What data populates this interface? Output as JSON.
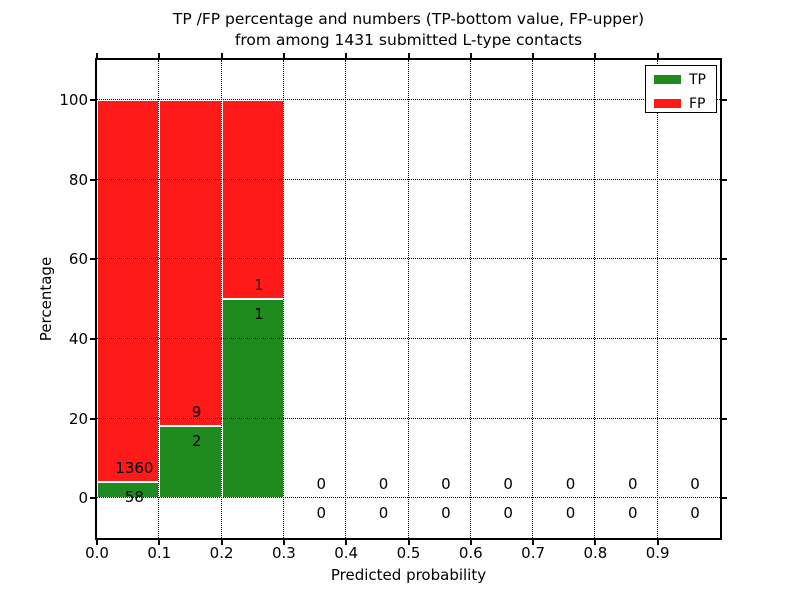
{
  "chart_data": {
    "type": "bar",
    "stacked": true,
    "units": "percent",
    "title_line1": "TP /FP percentage and numbers (TP-bottom value, FP-upper)",
    "title_line2": "from among 1431 submitted L-type contacts",
    "xlabel": "Predicted probability",
    "ylabel": "Percentage",
    "xlim": [
      0.0,
      1.0
    ],
    "ylim": [
      -10,
      110
    ],
    "xtick_labels": [
      "0.0",
      "0.1",
      "0.2",
      "0.3",
      "0.4",
      "0.5",
      "0.6",
      "0.7",
      "0.8",
      "0.9"
    ],
    "yticks": [
      0,
      20,
      40,
      60,
      80,
      100
    ],
    "grid": {
      "style": "dotted",
      "color": "#000000"
    },
    "colors": {
      "tp": "#1f8b1f",
      "fp": "#ff1a1a"
    },
    "legend": {
      "position": "upper-right",
      "entries": [
        {
          "label": "TP",
          "color": "#1f8b1f"
        },
        {
          "label": "FP",
          "color": "#ff1a1a"
        }
      ]
    },
    "total_submitted": 1431,
    "bins": [
      {
        "range": [
          0.0,
          0.1
        ],
        "tp": 58,
        "fp": 1360,
        "tp_pct": 4.09,
        "fp_pct": 95.91
      },
      {
        "range": [
          0.1,
          0.2
        ],
        "tp": 2,
        "fp": 9,
        "tp_pct": 18.18,
        "fp_pct": 81.82
      },
      {
        "range": [
          0.2,
          0.3
        ],
        "tp": 1,
        "fp": 1,
        "tp_pct": 50.0,
        "fp_pct": 50.0
      },
      {
        "range": [
          0.3,
          0.4
        ],
        "tp": 0,
        "fp": 0,
        "tp_pct": null,
        "fp_pct": null
      },
      {
        "range": [
          0.4,
          0.5
        ],
        "tp": 0,
        "fp": 0,
        "tp_pct": null,
        "fp_pct": null
      },
      {
        "range": [
          0.5,
          0.6
        ],
        "tp": 0,
        "fp": 0,
        "tp_pct": null,
        "fp_pct": null
      },
      {
        "range": [
          0.6,
          0.7
        ],
        "tp": 0,
        "fp": 0,
        "tp_pct": null,
        "fp_pct": null
      },
      {
        "range": [
          0.7,
          0.8
        ],
        "tp": 0,
        "fp": 0,
        "tp_pct": null,
        "fp_pct": null
      },
      {
        "range": [
          0.8,
          0.9
        ],
        "tp": 0,
        "fp": 0,
        "tp_pct": null,
        "fp_pct": null
      },
      {
        "range": [
          0.9,
          1.0
        ],
        "tp": 0,
        "fp": 0,
        "tp_pct": null,
        "fp_pct": null
      }
    ]
  }
}
